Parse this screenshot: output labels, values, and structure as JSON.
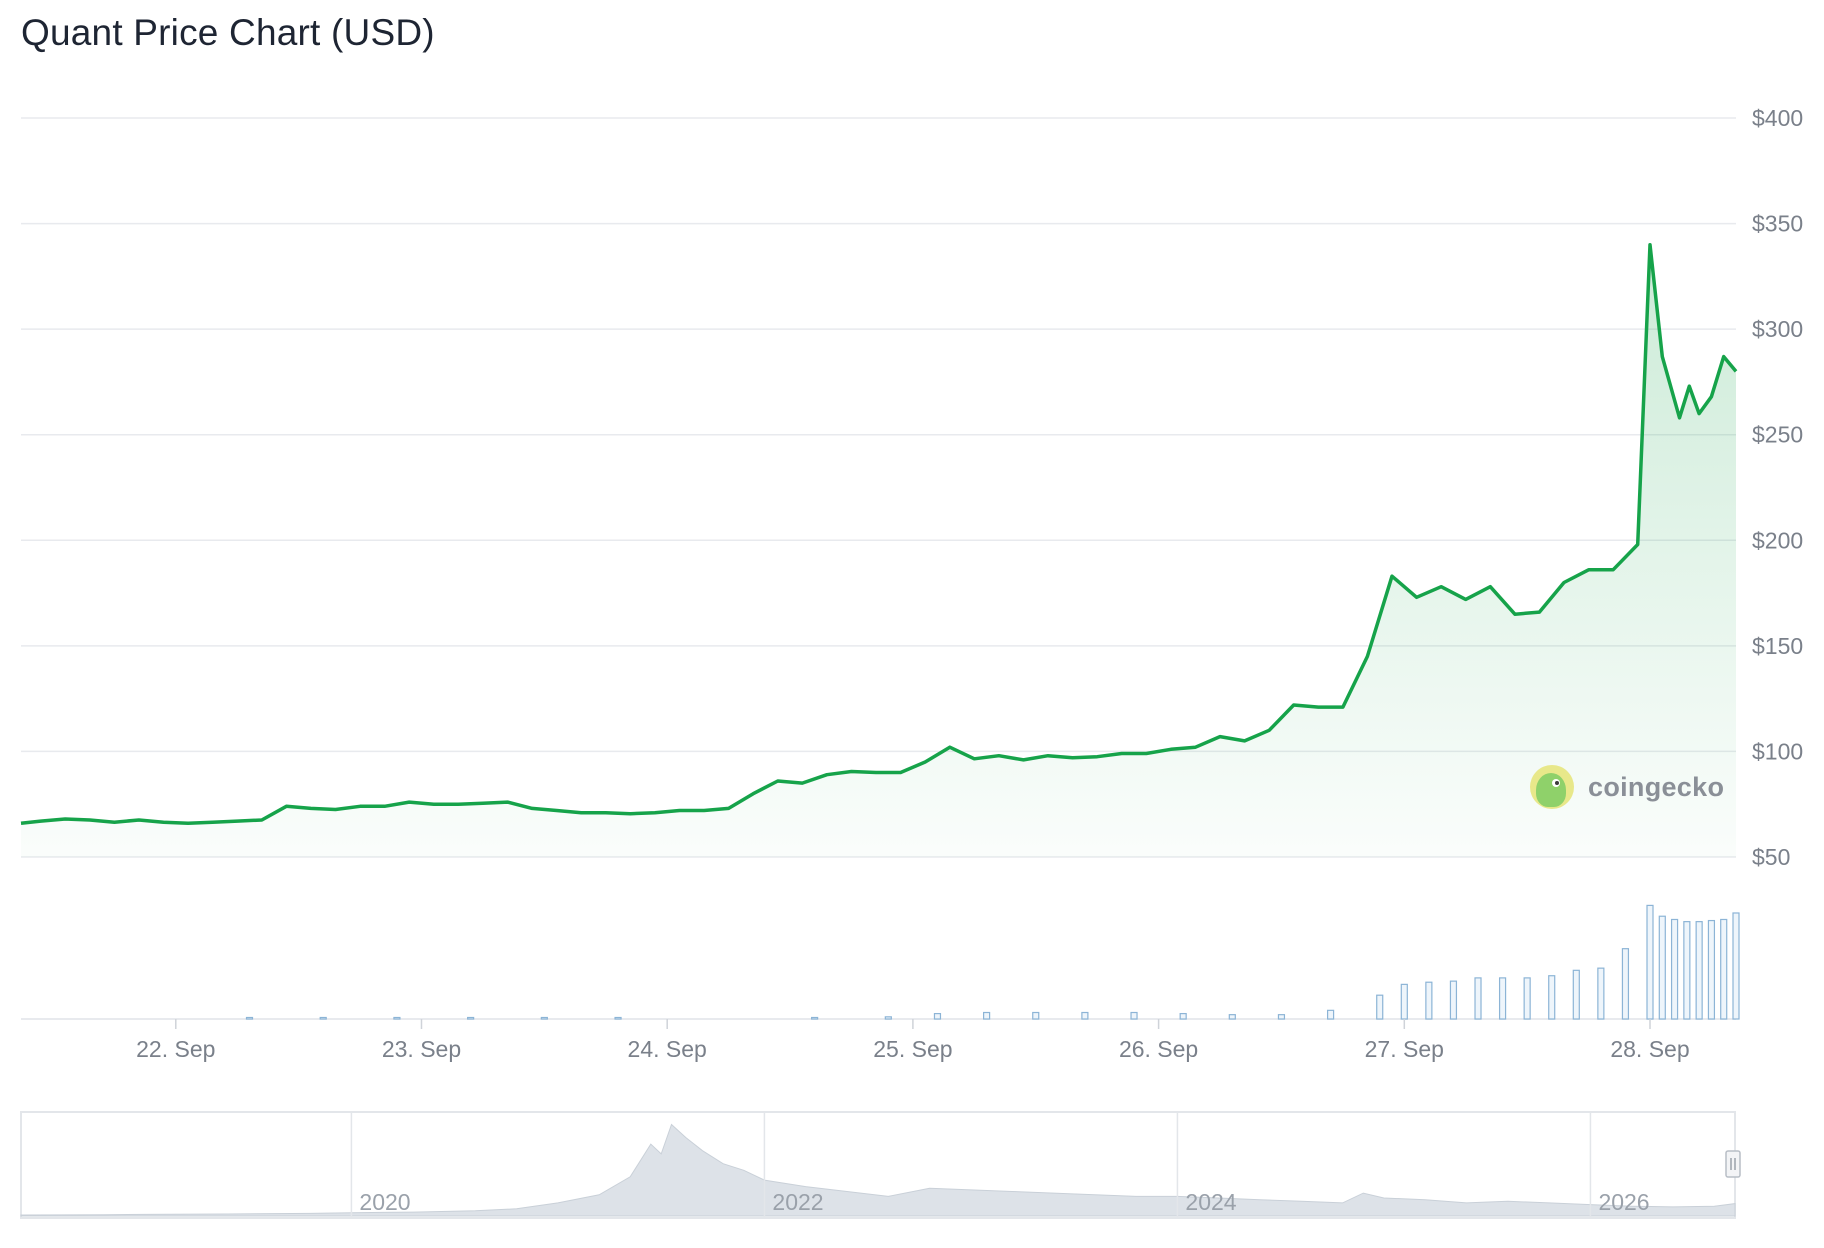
{
  "title": "Quant Price Chart (USD)",
  "watermark": "coingecko",
  "colors": {
    "line": "#16a34a",
    "area": "#16a34a",
    "grid": "#e8eaee",
    "volume": "#8cb4d6",
    "axis_text": "#7a808a",
    "navigator_area": "#dde2e8"
  },
  "chart_data": {
    "type": "line",
    "title": "Quant Price Chart (USD)",
    "y_tick_labels": [
      "$50",
      "$100",
      "$150",
      "$200",
      "$250",
      "$300",
      "$350",
      "$400"
    ],
    "y_ticks": [
      50,
      100,
      150,
      200,
      250,
      300,
      350,
      400
    ],
    "ylim": [
      50,
      400
    ],
    "x_tick_labels": [
      "22. Sep",
      "23. Sep",
      "24. Sep",
      "25. Sep",
      "26. Sep",
      "27. Sep",
      "28. Sep"
    ],
    "x_ticks": [
      22,
      23,
      24,
      25,
      26,
      27,
      28
    ],
    "xlim": [
      21.37,
      28.35
    ],
    "grid": true,
    "series": [
      {
        "values": [
          [
            21.37,
            66
          ],
          [
            21.45,
            67
          ],
          [
            21.55,
            68
          ],
          [
            21.65,
            67.5
          ],
          [
            21.75,
            66.5
          ],
          [
            21.85,
            67.5
          ],
          [
            21.95,
            66.5
          ],
          [
            22.05,
            66
          ],
          [
            22.15,
            66.5
          ],
          [
            22.25,
            67
          ],
          [
            22.35,
            67.5
          ],
          [
            22.45,
            74
          ],
          [
            22.55,
            73
          ],
          [
            22.65,
            72.5
          ],
          [
            22.75,
            74
          ],
          [
            22.85,
            74
          ],
          [
            22.95,
            76
          ],
          [
            23.05,
            75
          ],
          [
            23.15,
            75
          ],
          [
            23.25,
            75.5
          ],
          [
            23.35,
            76
          ],
          [
            23.45,
            73
          ],
          [
            23.55,
            72
          ],
          [
            23.65,
            71
          ],
          [
            23.75,
            71
          ],
          [
            23.85,
            70.5
          ],
          [
            23.95,
            71
          ],
          [
            24.05,
            72
          ],
          [
            24.15,
            72
          ],
          [
            24.25,
            73
          ],
          [
            24.35,
            80
          ],
          [
            24.45,
            86
          ],
          [
            24.55,
            85
          ],
          [
            24.65,
            89
          ],
          [
            24.75,
            90.5
          ],
          [
            24.85,
            90
          ],
          [
            24.95,
            90
          ],
          [
            25.05,
            95
          ],
          [
            25.15,
            102
          ],
          [
            25.25,
            96.5
          ],
          [
            25.35,
            98
          ],
          [
            25.45,
            96
          ],
          [
            25.55,
            98
          ],
          [
            25.65,
            97
          ],
          [
            25.75,
            97.5
          ],
          [
            25.85,
            99
          ],
          [
            25.95,
            99
          ],
          [
            26.05,
            101
          ],
          [
            26.15,
            102
          ],
          [
            26.25,
            107
          ],
          [
            26.35,
            105
          ],
          [
            26.45,
            110
          ],
          [
            26.55,
            122
          ],
          [
            26.65,
            121
          ],
          [
            26.75,
            121
          ],
          [
            26.85,
            145
          ],
          [
            26.95,
            183
          ],
          [
            27.05,
            173
          ],
          [
            27.15,
            178
          ],
          [
            27.25,
            172
          ],
          [
            27.35,
            178
          ],
          [
            27.45,
            165
          ],
          [
            27.55,
            166
          ],
          [
            27.65,
            180
          ],
          [
            27.75,
            186
          ],
          [
            27.85,
            186
          ],
          [
            27.95,
            198
          ],
          [
            28.0,
            340
          ],
          [
            28.05,
            287
          ],
          [
            28.12,
            258
          ],
          [
            28.16,
            273
          ],
          [
            28.2,
            260
          ],
          [
            28.25,
            268
          ],
          [
            28.3,
            287
          ],
          [
            28.35,
            280
          ]
        ]
      }
    ],
    "volume": [
      [
        22.3,
        0.1
      ],
      [
        22.6,
        0.1
      ],
      [
        22.9,
        0.1
      ],
      [
        23.2,
        0.1
      ],
      [
        23.5,
        0.1
      ],
      [
        23.8,
        0.1
      ],
      [
        24.6,
        0.1
      ],
      [
        24.9,
        0.2
      ],
      [
        25.1,
        0.5
      ],
      [
        25.3,
        0.6
      ],
      [
        25.5,
        0.6
      ],
      [
        25.7,
        0.6
      ],
      [
        25.9,
        0.6
      ],
      [
        26.1,
        0.5
      ],
      [
        26.3,
        0.4
      ],
      [
        26.5,
        0.4
      ],
      [
        26.7,
        0.8
      ],
      [
        26.9,
        2.2
      ],
      [
        27.0,
        3.2
      ],
      [
        27.1,
        3.4
      ],
      [
        27.2,
        3.5
      ],
      [
        27.3,
        3.8
      ],
      [
        27.4,
        3.8
      ],
      [
        27.5,
        3.8
      ],
      [
        27.6,
        4.0
      ],
      [
        27.7,
        4.5
      ],
      [
        27.8,
        4.7
      ],
      [
        27.9,
        6.5
      ],
      [
        28.0,
        10.5
      ],
      [
        28.05,
        9.5
      ],
      [
        28.1,
        9.2
      ],
      [
        28.15,
        9.0
      ],
      [
        28.2,
        9.0
      ],
      [
        28.25,
        9.1
      ],
      [
        28.3,
        9.2
      ],
      [
        28.35,
        9.8
      ]
    ]
  },
  "navigator": {
    "x_tick_labels": [
      "2020",
      "2022",
      "2024",
      "2026"
    ],
    "x_ticks": [
      2020,
      2022,
      2024,
      2026
    ],
    "xlim": [
      2018.4,
      2026.7
    ],
    "values": [
      [
        2018.4,
        0.3
      ],
      [
        2018.8,
        0.4
      ],
      [
        2019.0,
        0.5
      ],
      [
        2019.4,
        0.6
      ],
      [
        2019.8,
        0.8
      ],
      [
        2020.0,
        1.0
      ],
      [
        2020.3,
        1.2
      ],
      [
        2020.6,
        1.6
      ],
      [
        2020.8,
        2.2
      ],
      [
        2021.0,
        4.0
      ],
      [
        2021.2,
        6.5
      ],
      [
        2021.35,
        12.0
      ],
      [
        2021.45,
        22.0
      ],
      [
        2021.5,
        19.0
      ],
      [
        2021.55,
        28.0
      ],
      [
        2021.62,
        24.0
      ],
      [
        2021.7,
        20.0
      ],
      [
        2021.8,
        16.0
      ],
      [
        2021.9,
        14.0
      ],
      [
        2022.0,
        11.0
      ],
      [
        2022.2,
        9.0
      ],
      [
        2022.4,
        7.5
      ],
      [
        2022.6,
        6.0
      ],
      [
        2022.8,
        8.5
      ],
      [
        2023.0,
        8.0
      ],
      [
        2023.2,
        7.5
      ],
      [
        2023.4,
        7.0
      ],
      [
        2023.6,
        6.5
      ],
      [
        2023.8,
        6.0
      ],
      [
        2024.0,
        6.0
      ],
      [
        2024.2,
        5.5
      ],
      [
        2024.4,
        5.0
      ],
      [
        2024.6,
        4.5
      ],
      [
        2024.8,
        4.0
      ],
      [
        2024.9,
        7.0
      ],
      [
        2025.0,
        5.5
      ],
      [
        2025.2,
        5.0
      ],
      [
        2025.4,
        4.0
      ],
      [
        2025.6,
        4.5
      ],
      [
        2025.8,
        4.0
      ],
      [
        2026.0,
        3.5
      ],
      [
        2026.2,
        3.0
      ],
      [
        2026.4,
        2.8
      ],
      [
        2026.6,
        3.0
      ],
      [
        2026.7,
        3.8
      ]
    ],
    "ylim": [
      0,
      30
    ]
  }
}
